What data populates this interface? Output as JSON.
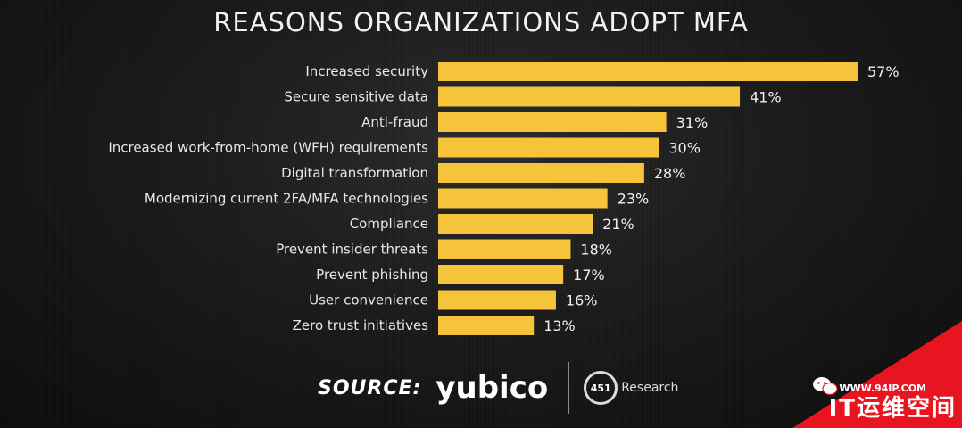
{
  "chart_data": {
    "type": "bar",
    "orientation": "horizontal",
    "title": "REASONS ORGANIZATIONS ADOPT MFA",
    "categories": [
      "Increased security",
      "Secure sensitive data",
      "Anti-fraud",
      "Increased work-from-home (WFH) requirements",
      "Digital transformation",
      "Modernizing current 2FA/MFA technologies",
      "Compliance",
      "Prevent insider threats",
      "Prevent phishing",
      "User convenience",
      "Zero trust initiatives"
    ],
    "values": [
      57,
      41,
      31,
      30,
      28,
      23,
      21,
      18,
      17,
      16,
      13
    ],
    "value_labels": [
      "57%",
      "41%",
      "31%",
      "30%",
      "28%",
      "23%",
      "21%",
      "18%",
      "17%",
      "16%",
      "13%"
    ],
    "xlim": [
      0,
      57
    ],
    "grid": false,
    "bar_color": "#f6c43a"
  },
  "source": {
    "label": "SOURCE:",
    "brand": "yubico",
    "partner_logo_text": "451",
    "partner_name": "Research"
  },
  "watermark": {
    "site": "WWW.94IP.COM",
    "name": "IT运维空间",
    "icon": "wechat-icon",
    "color": "#e8141f"
  }
}
